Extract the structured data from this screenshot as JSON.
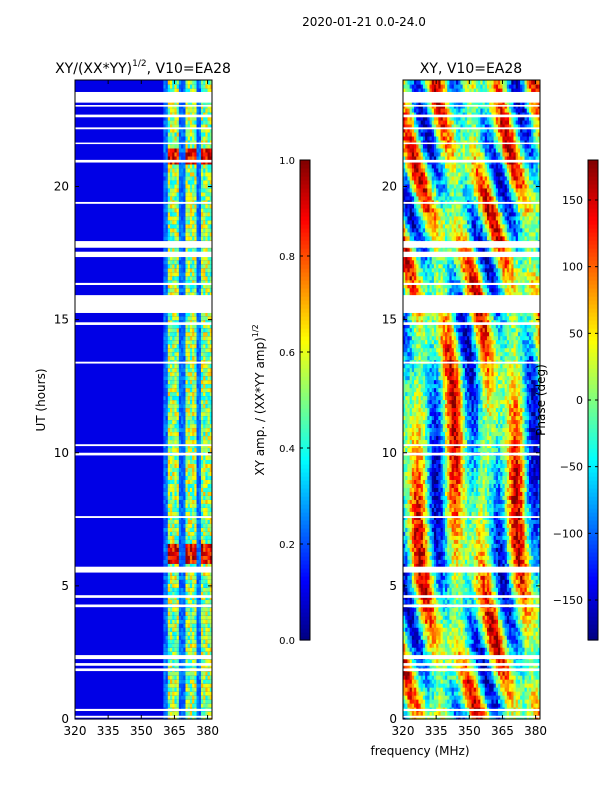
{
  "figure": {
    "suptitle": "2020-01-21 0.0-24.0",
    "shared_xlabel": "frequency (MHz)"
  },
  "chart_data": [
    {
      "type": "heatmap",
      "title_main": "XY/(XX*YY)",
      "title_exp": "1/2",
      "title_tail": ", V10=EA28",
      "xlabel": "",
      "ylabel": "UT (hours)",
      "xlim": [
        320,
        382
      ],
      "ylim": [
        0,
        24
      ],
      "xticks": [
        "320",
        "335",
        "350",
        "365",
        "380"
      ],
      "xtick_values": [
        320,
        335,
        350,
        365,
        380
      ],
      "yticks": [
        "0",
        "5",
        "10",
        "15",
        "20"
      ],
      "ytick_values": [
        0,
        5,
        10,
        15,
        20
      ],
      "bright_channels_mhz": [
        363.5,
        366,
        371,
        373.5,
        378,
        380.5
      ],
      "colorbar": {
        "label_main": "XY amp. / (XX*YY amp)",
        "label_exp": "1/2",
        "range": [
          0,
          1
        ],
        "ticks": [
          "0.0",
          "0.2",
          "0.4",
          "0.6",
          "0.8",
          "1.0"
        ],
        "tick_values": [
          0,
          0.2,
          0.4,
          0.6,
          0.8,
          1.0
        ],
        "colormap": "jet"
      }
    },
    {
      "type": "heatmap",
      "title": "XY, V10=EA28",
      "xlabel": "",
      "ylabel": "",
      "xlim": [
        320,
        382
      ],
      "ylim": [
        0,
        24
      ],
      "xticks": [
        "320",
        "335",
        "350",
        "365",
        "380"
      ],
      "xtick_values": [
        320,
        335,
        350,
        365,
        380
      ],
      "yticks": [
        "0",
        "5",
        "10",
        "15",
        "20"
      ],
      "ytick_values": [
        0,
        5,
        10,
        15,
        20
      ],
      "colorbar": {
        "label": "Phase (deg)",
        "range": [
          -180,
          180
        ],
        "ticks": [
          "−150",
          "−100",
          "−50",
          "0",
          "50",
          "100",
          "150"
        ],
        "tick_values": [
          -150,
          -100,
          -50,
          0,
          50,
          100,
          150
        ],
        "colormap": "jet"
      }
    }
  ],
  "flagged_time_ranges_ut": [
    [
      0.05,
      0.12
    ],
    [
      0.3,
      0.38
    ],
    [
      1.8,
      1.9
    ],
    [
      2.0,
      2.1
    ],
    [
      2.25,
      2.4
    ],
    [
      4.2,
      4.3
    ],
    [
      4.55,
      4.65
    ],
    [
      5.5,
      5.72
    ],
    [
      7.55,
      7.62
    ],
    [
      9.9,
      10.0
    ],
    [
      10.25,
      10.32
    ],
    [
      13.35,
      13.42
    ],
    [
      14.8,
      14.9
    ],
    [
      15.25,
      15.92
    ],
    [
      16.3,
      16.38
    ],
    [
      17.35,
      17.55
    ],
    [
      17.7,
      17.95
    ],
    [
      19.35,
      19.42
    ],
    [
      20.9,
      21.0
    ],
    [
      21.6,
      21.65
    ],
    [
      22.15,
      22.22
    ],
    [
      22.6,
      22.7
    ],
    [
      23.0,
      23.06
    ],
    [
      23.15,
      23.55
    ]
  ]
}
